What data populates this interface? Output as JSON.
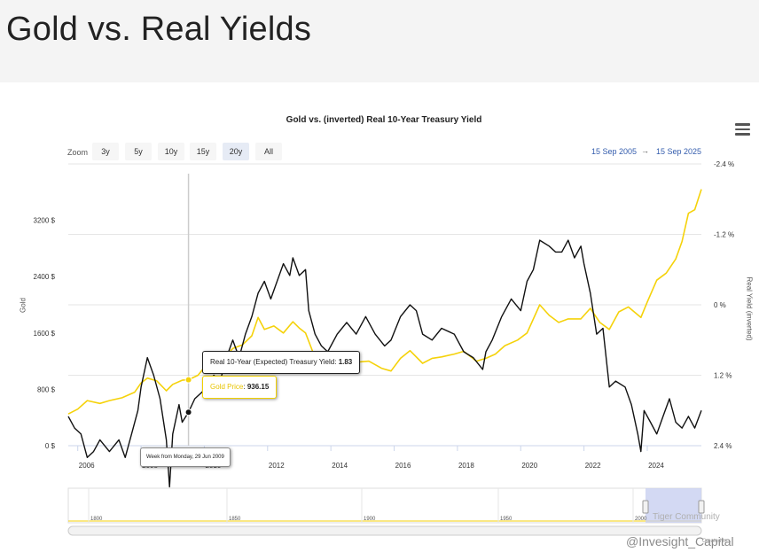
{
  "page": {
    "title": "Gold vs. Real Yields"
  },
  "chart_title": "Gold vs. (inverted) Real 10-Year Treasury Yield",
  "zoom": {
    "label": "Zoom",
    "buttons": [
      "3y",
      "5y",
      "10y",
      "15y",
      "20y",
      "All"
    ],
    "active": "20y"
  },
  "range": {
    "from": "15 Sep 2005",
    "arrow": "→",
    "to": "15 Sep 2025"
  },
  "colors": {
    "gold": "#f5d20a",
    "yield": "#111111",
    "grid": "#e6e6e6",
    "navigator_fill": "#c8d0f0"
  },
  "icons": {
    "menu": "hamburger-menu-icon"
  },
  "tooltip": {
    "yield_name": "Real 10-Year (Expected) Treasury Yield",
    "yield_value": "1.83",
    "gold_name": "Gold Price",
    "gold_value": "936.15",
    "week": "Week from Monday, 29 Jun 2009"
  },
  "navigator": {
    "labels": [
      "1800",
      "1850",
      "1900",
      "1950",
      "2000"
    ]
  },
  "watermark": "@Invesight_Capital",
  "watermark2": "Tiger Community",
  "credits": "Created in...",
  "chart_data": {
    "type": "line",
    "title": "Gold vs. (inverted) Real 10-Year Treasury Yield",
    "xlim": [
      2005.7,
      2025.71
    ],
    "x_ticks": [
      "2006",
      "2008",
      "2010",
      "2012",
      "2014",
      "2016",
      "2018",
      "2020",
      "2022",
      "2024"
    ],
    "y_left": {
      "label": "Gold",
      "range": [
        0,
        4000
      ],
      "ticks": [
        0,
        800,
        1600,
        2400,
        3200
      ],
      "tick_labels": [
        "0 $",
        "800 $",
        "1600 $",
        "2400 $",
        "3200 $"
      ]
    },
    "y_right": {
      "label": "Real Yield (inverted)",
      "inverted": true,
      "range": [
        -2.4,
        2.4
      ],
      "ticks": [
        -2.4,
        -1.2,
        0,
        1.2,
        2.4
      ],
      "tick_labels": [
        "-2.4 %",
        "-1.2 %",
        "0 %",
        "1.2 %",
        "2.4 %"
      ]
    },
    "series": [
      {
        "name": "Gold Price",
        "axis": "left",
        "points": [
          [
            2005.7,
            450
          ],
          [
            2006.0,
            520
          ],
          [
            2006.3,
            640
          ],
          [
            2006.7,
            600
          ],
          [
            2007.0,
            640
          ],
          [
            2007.4,
            680
          ],
          [
            2007.8,
            760
          ],
          [
            2008.0,
            890
          ],
          [
            2008.2,
            960
          ],
          [
            2008.5,
            920
          ],
          [
            2008.8,
            780
          ],
          [
            2009.0,
            870
          ],
          [
            2009.3,
            930
          ],
          [
            2009.5,
            936
          ],
          [
            2009.8,
            1000
          ],
          [
            2010.0,
            1110
          ],
          [
            2010.3,
            1180
          ],
          [
            2010.6,
            1230
          ],
          [
            2010.9,
            1380
          ],
          [
            2011.2,
            1430
          ],
          [
            2011.5,
            1560
          ],
          [
            2011.7,
            1820
          ],
          [
            2011.9,
            1650
          ],
          [
            2012.2,
            1700
          ],
          [
            2012.5,
            1600
          ],
          [
            2012.8,
            1760
          ],
          [
            2013.0,
            1670
          ],
          [
            2013.2,
            1600
          ],
          [
            2013.5,
            1250
          ],
          [
            2013.8,
            1320
          ],
          [
            2014.0,
            1240
          ],
          [
            2014.3,
            1300
          ],
          [
            2014.6,
            1300
          ],
          [
            2014.9,
            1190
          ],
          [
            2015.2,
            1200
          ],
          [
            2015.6,
            1100
          ],
          [
            2015.9,
            1060
          ],
          [
            2016.2,
            1240
          ],
          [
            2016.5,
            1350
          ],
          [
            2016.9,
            1170
          ],
          [
            2017.2,
            1240
          ],
          [
            2017.5,
            1260
          ],
          [
            2017.9,
            1300
          ],
          [
            2018.2,
            1340
          ],
          [
            2018.6,
            1200
          ],
          [
            2018.9,
            1240
          ],
          [
            2019.2,
            1300
          ],
          [
            2019.5,
            1420
          ],
          [
            2019.9,
            1500
          ],
          [
            2020.2,
            1600
          ],
          [
            2020.6,
            2000
          ],
          [
            2020.9,
            1850
          ],
          [
            2021.2,
            1750
          ],
          [
            2021.5,
            1800
          ],
          [
            2021.9,
            1800
          ],
          [
            2022.2,
            1950
          ],
          [
            2022.5,
            1750
          ],
          [
            2022.8,
            1650
          ],
          [
            2023.1,
            1900
          ],
          [
            2023.4,
            1970
          ],
          [
            2023.8,
            1820
          ],
          [
            2024.0,
            2040
          ],
          [
            2024.3,
            2350
          ],
          [
            2024.6,
            2450
          ],
          [
            2024.9,
            2650
          ],
          [
            2025.1,
            2900
          ],
          [
            2025.3,
            3300
          ],
          [
            2025.5,
            3350
          ],
          [
            2025.71,
            3640
          ]
        ]
      },
      {
        "name": "Real 10-Year (Expected) Treasury Yield",
        "axis": "right",
        "points": [
          [
            2005.7,
            1.9
          ],
          [
            2005.9,
            2.1
          ],
          [
            2006.1,
            2.2
          ],
          [
            2006.3,
            2.6
          ],
          [
            2006.5,
            2.5
          ],
          [
            2006.7,
            2.3
          ],
          [
            2007.0,
            2.5
          ],
          [
            2007.3,
            2.3
          ],
          [
            2007.5,
            2.6
          ],
          [
            2007.7,
            2.2
          ],
          [
            2007.9,
            1.8
          ],
          [
            2008.0,
            1.4
          ],
          [
            2008.2,
            0.9
          ],
          [
            2008.4,
            1.2
          ],
          [
            2008.6,
            1.6
          ],
          [
            2008.8,
            2.3
          ],
          [
            2008.9,
            3.1
          ],
          [
            2009.0,
            2.2
          ],
          [
            2009.2,
            1.7
          ],
          [
            2009.3,
            2.0
          ],
          [
            2009.5,
            1.83
          ],
          [
            2009.7,
            1.6
          ],
          [
            2009.9,
            1.5
          ],
          [
            2010.1,
            1.4
          ],
          [
            2010.3,
            1.2
          ],
          [
            2010.5,
            1.3
          ],
          [
            2010.7,
            0.9
          ],
          [
            2010.9,
            0.6
          ],
          [
            2011.1,
            0.9
          ],
          [
            2011.3,
            0.5
          ],
          [
            2011.5,
            0.2
          ],
          [
            2011.7,
            -0.2
          ],
          [
            2011.9,
            -0.4
          ],
          [
            2012.1,
            -0.1
          ],
          [
            2012.3,
            -0.4
          ],
          [
            2012.5,
            -0.7
          ],
          [
            2012.7,
            -0.5
          ],
          [
            2012.8,
            -0.8
          ],
          [
            2013.0,
            -0.5
          ],
          [
            2013.2,
            -0.6
          ],
          [
            2013.3,
            0.1
          ],
          [
            2013.5,
            0.5
          ],
          [
            2013.7,
            0.7
          ],
          [
            2013.9,
            0.8
          ],
          [
            2014.2,
            0.5
          ],
          [
            2014.5,
            0.3
          ],
          [
            2014.8,
            0.5
          ],
          [
            2015.1,
            0.2
          ],
          [
            2015.4,
            0.5
          ],
          [
            2015.7,
            0.7
          ],
          [
            2015.9,
            0.6
          ],
          [
            2016.2,
            0.2
          ],
          [
            2016.5,
            0.0
          ],
          [
            2016.7,
            0.1
          ],
          [
            2016.9,
            0.5
          ],
          [
            2017.2,
            0.6
          ],
          [
            2017.5,
            0.4
          ],
          [
            2017.9,
            0.5
          ],
          [
            2018.2,
            0.8
          ],
          [
            2018.5,
            0.9
          ],
          [
            2018.8,
            1.1
          ],
          [
            2018.9,
            0.8
          ],
          [
            2019.1,
            0.6
          ],
          [
            2019.4,
            0.2
          ],
          [
            2019.7,
            -0.1
          ],
          [
            2020.0,
            0.1
          ],
          [
            2020.2,
            -0.4
          ],
          [
            2020.4,
            -0.6
          ],
          [
            2020.6,
            -1.1
          ],
          [
            2020.9,
            -1.0
          ],
          [
            2021.1,
            -0.9
          ],
          [
            2021.3,
            -0.9
          ],
          [
            2021.5,
            -1.1
          ],
          [
            2021.7,
            -0.8
          ],
          [
            2021.9,
            -1.0
          ],
          [
            2022.0,
            -0.7
          ],
          [
            2022.2,
            -0.2
          ],
          [
            2022.4,
            0.5
          ],
          [
            2022.6,
            0.4
          ],
          [
            2022.8,
            1.4
          ],
          [
            2023.0,
            1.3
          ],
          [
            2023.3,
            1.4
          ],
          [
            2023.5,
            1.7
          ],
          [
            2023.7,
            2.2
          ],
          [
            2023.8,
            2.5
          ],
          [
            2023.9,
            1.8
          ],
          [
            2024.1,
            2.0
          ],
          [
            2024.3,
            2.2
          ],
          [
            2024.5,
            1.9
          ],
          [
            2024.7,
            1.6
          ],
          [
            2024.9,
            2.0
          ],
          [
            2025.1,
            2.1
          ],
          [
            2025.3,
            1.9
          ],
          [
            2025.5,
            2.1
          ],
          [
            2025.71,
            1.8
          ]
        ]
      }
    ],
    "grid": true,
    "crosshair_x": 2009.5
  }
}
